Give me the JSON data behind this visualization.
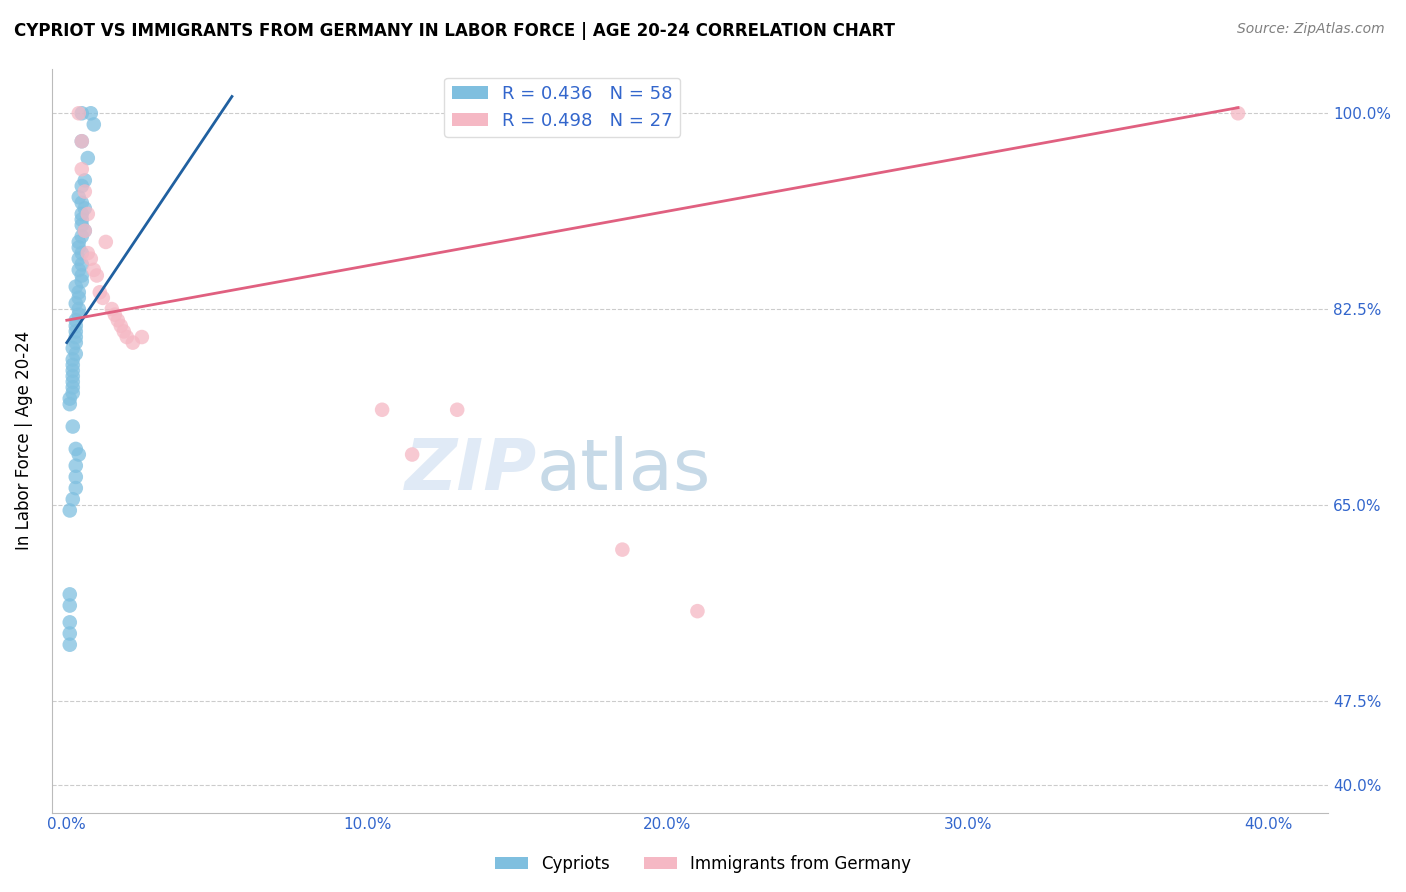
{
  "title": "CYPRIOT VS IMMIGRANTS FROM GERMANY IN LABOR FORCE | AGE 20-24 CORRELATION CHART",
  "source": "Source: ZipAtlas.com",
  "ylabel": "In Labor Force | Age 20-24",
  "x_tick_labels": [
    "0.0%",
    "10.0%",
    "20.0%",
    "30.0%",
    "40.0%"
  ],
  "y_tick_labels": [
    "100.0%",
    "82.5%",
    "65.0%",
    "47.5%",
    "40.0%"
  ],
  "y_ticks": [
    1.0,
    0.825,
    0.65,
    0.475,
    0.4
  ],
  "x_ticks": [
    0.0,
    0.1,
    0.2,
    0.3,
    0.4
  ],
  "xlim": [
    -0.005,
    0.42
  ],
  "ylim": [
    0.375,
    1.04
  ],
  "blue_R": 0.436,
  "blue_N": 58,
  "pink_R": 0.498,
  "pink_N": 27,
  "blue_color": "#7fbfdf",
  "pink_color": "#f5b8c4",
  "blue_line_color": "#2060a0",
  "pink_line_color": "#e06080",
  "legend_label_blue": "Cypriots",
  "legend_label_pink": "Immigrants from Germany",
  "watermark_text": "ZIP",
  "watermark_text2": "atlas",
  "blue_x": [
    0.005,
    0.008,
    0.009,
    0.005,
    0.007,
    0.006,
    0.005,
    0.004,
    0.005,
    0.006,
    0.005,
    0.005,
    0.005,
    0.006,
    0.005,
    0.004,
    0.004,
    0.005,
    0.004,
    0.005,
    0.004,
    0.005,
    0.005,
    0.003,
    0.004,
    0.004,
    0.003,
    0.004,
    0.004,
    0.003,
    0.003,
    0.003,
    0.003,
    0.003,
    0.002,
    0.003,
    0.002,
    0.002,
    0.002,
    0.002,
    0.002,
    0.002,
    0.002,
    0.001,
    0.001,
    0.002,
    0.003,
    0.004,
    0.003,
    0.003,
    0.003,
    0.002,
    0.001,
    0.001,
    0.001,
    0.001,
    0.001,
    0.001
  ],
  "blue_y": [
    1.0,
    1.0,
    0.99,
    0.975,
    0.96,
    0.94,
    0.935,
    0.925,
    0.92,
    0.915,
    0.91,
    0.905,
    0.9,
    0.895,
    0.89,
    0.885,
    0.88,
    0.875,
    0.87,
    0.865,
    0.86,
    0.855,
    0.85,
    0.845,
    0.84,
    0.835,
    0.83,
    0.825,
    0.82,
    0.815,
    0.81,
    0.805,
    0.8,
    0.795,
    0.79,
    0.785,
    0.78,
    0.775,
    0.77,
    0.765,
    0.76,
    0.755,
    0.75,
    0.745,
    0.74,
    0.72,
    0.7,
    0.695,
    0.685,
    0.675,
    0.665,
    0.655,
    0.645,
    0.57,
    0.56,
    0.545,
    0.535,
    0.525
  ],
  "pink_x": [
    0.004,
    0.005,
    0.005,
    0.006,
    0.007,
    0.006,
    0.007,
    0.008,
    0.009,
    0.01,
    0.011,
    0.012,
    0.013,
    0.015,
    0.016,
    0.017,
    0.018,
    0.019,
    0.02,
    0.022,
    0.025,
    0.105,
    0.115,
    0.13,
    0.185,
    0.21,
    0.39
  ],
  "pink_y": [
    1.0,
    0.975,
    0.95,
    0.93,
    0.91,
    0.895,
    0.875,
    0.87,
    0.86,
    0.855,
    0.84,
    0.835,
    0.885,
    0.825,
    0.82,
    0.815,
    0.81,
    0.805,
    0.8,
    0.795,
    0.8,
    0.735,
    0.695,
    0.735,
    0.61,
    0.555,
    1.0
  ],
  "blue_line_x": [
    0.0,
    0.055
  ],
  "blue_line_y": [
    0.795,
    1.015
  ],
  "pink_line_x": [
    0.0,
    0.39
  ],
  "pink_line_y": [
    0.815,
    1.005
  ]
}
